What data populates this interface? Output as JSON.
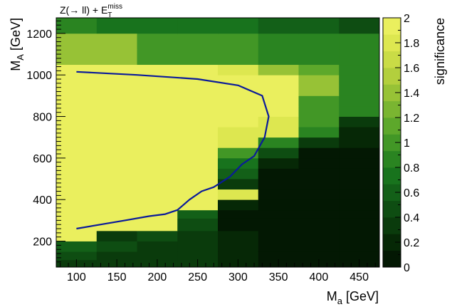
{
  "chart_data": {
    "type": "heatmap",
    "title_main": "Z(→ ll) + E",
    "title_sub": "T",
    "title_sup": "miss",
    "xlabel_main": "M",
    "xlabel_sub": "a",
    "xlabel_unit": " [GeV]",
    "ylabel_main": "M",
    "ylabel_sub": "A",
    "ylabel_unit": " [GeV]",
    "zlabel": "significance",
    "x_edges": [
      75,
      125,
      175,
      225,
      275,
      325,
      375,
      425,
      475
    ],
    "y_edges": [
      75,
      110,
      150,
      200,
      250,
      310,
      350,
      400,
      450,
      500,
      550,
      600,
      650,
      700,
      750,
      800,
      850,
      900,
      950,
      1000,
      1050,
      1125,
      1200,
      1275
    ],
    "xlim": [
      75,
      475
    ],
    "ylim": [
      75,
      1275
    ],
    "zlim": [
      0,
      2
    ],
    "x_ticks": [
      100,
      150,
      200,
      250,
      300,
      350,
      400,
      450
    ],
    "x_tick_labels": [
      "100",
      "150",
      "200",
      "250",
      "300",
      "350",
      "400",
      "450"
    ],
    "y_ticks": [
      200,
      400,
      600,
      800,
      1000,
      1200
    ],
    "y_tick_labels": [
      "200",
      "400",
      "600",
      "800",
      "1000",
      "1200"
    ],
    "z_ticks": [
      0,
      0.2,
      0.4,
      0.6,
      0.8,
      1,
      1.2,
      1.4,
      1.6,
      1.8,
      2
    ],
    "z_tick_labels": [
      "0",
      "0.2",
      "0.4",
      "0.6",
      "0.8",
      "1",
      "1.2",
      "1.4",
      "1.6",
      "1.8",
      "2"
    ],
    "palette": [
      "#031803",
      "#062806",
      "#0a3b0c",
      "#0e4d12",
      "#136018",
      "#18731d",
      "#2a8421",
      "#429726",
      "#5da82b",
      "#7ab531",
      "#97c236",
      "#b3cf3d",
      "#cadc46",
      "#dde750",
      "#eaef5e"
    ],
    "z_rows": [
      [
        0.3,
        0.3,
        0.3,
        0.32,
        0.25,
        0.1,
        0.1,
        0.1
      ],
      [
        0.4,
        0.35,
        0.35,
        0.32,
        0.25,
        0.1,
        0.1,
        0.1
      ],
      [
        0.6,
        0.4,
        0.3,
        0.35,
        0.2,
        0.1,
        0.1,
        0.1
      ],
      [
        2.0,
        0.3,
        0.5,
        0.3,
        0.2,
        0.1,
        0.1,
        0.1
      ],
      [
        2.0,
        2.0,
        2.0,
        0.45,
        0.05,
        0.05,
        0.05,
        0.05
      ],
      [
        2.0,
        2.0,
        2.0,
        0.6,
        0.05,
        0.05,
        0.05,
        0.05
      ],
      [
        2.0,
        2.0,
        2.0,
        2.0,
        0.15,
        0.05,
        0.05,
        0.05
      ],
      [
        2.0,
        2.0,
        2.0,
        2.0,
        1.85,
        0.05,
        0.05,
        0.05
      ],
      [
        2.0,
        2.0,
        2.0,
        2.0,
        0.3,
        0.05,
        0.05,
        0.05
      ],
      [
        2.0,
        2.0,
        2.0,
        2.0,
        0.6,
        0.05,
        0.05,
        0.05
      ],
      [
        2.0,
        2.0,
        2.0,
        2.0,
        0.75,
        0.2,
        0.05,
        0.05
      ],
      [
        2.0,
        2.0,
        2.0,
        2.0,
        0.95,
        0.4,
        0.1,
        0.1
      ],
      [
        2.0,
        2.0,
        2.0,
        2.0,
        1.85,
        0.8,
        0.3,
        0.2
      ],
      [
        2.0,
        2.0,
        2.0,
        2.0,
        1.85,
        1.85,
        0.8,
        0.2
      ],
      [
        2.0,
        2.0,
        2.0,
        2.0,
        2.0,
        1.85,
        1.0,
        0.3
      ],
      [
        2.0,
        2.0,
        2.0,
        2.0,
        2.0,
        1.95,
        1.0,
        0.8
      ],
      [
        2.0,
        2.0,
        2.0,
        2.0,
        2.0,
        1.95,
        1.0,
        0.8
      ],
      [
        2.0,
        2.0,
        2.0,
        2.0,
        2.0,
        1.95,
        1.4,
        0.9
      ],
      [
        2.0,
        2.0,
        2.0,
        2.0,
        2.0,
        1.95,
        1.4,
        0.9
      ],
      [
        2.0,
        2.0,
        2.0,
        2.0,
        1.85,
        1.4,
        1.1,
        0.9
      ],
      [
        1.4,
        1.4,
        1.0,
        1.0,
        1.0,
        0.9,
        0.9,
        0.8
      ],
      [
        1.4,
        1.4,
        1.0,
        1.0,
        1.0,
        0.9,
        0.9,
        0.8
      ],
      [
        0.9,
        0.7,
        0.7,
        0.7,
        0.7,
        0.6,
        0.6,
        0.5
      ]
    ],
    "contour": {
      "color": "#0a1a9a",
      "points": [
        [
          100,
          260
        ],
        [
          130,
          280
        ],
        [
          160,
          300
        ],
        [
          190,
          320
        ],
        [
          210,
          330
        ],
        [
          225,
          350
        ],
        [
          240,
          400
        ],
        [
          255,
          440
        ],
        [
          270,
          460
        ],
        [
          290,
          510
        ],
        [
          305,
          570
        ],
        [
          320,
          610
        ],
        [
          333,
          700
        ],
        [
          338,
          800
        ],
        [
          330,
          900
        ],
        [
          300,
          950
        ],
        [
          250,
          980
        ],
        [
          175,
          1000
        ],
        [
          100,
          1015
        ]
      ]
    }
  }
}
